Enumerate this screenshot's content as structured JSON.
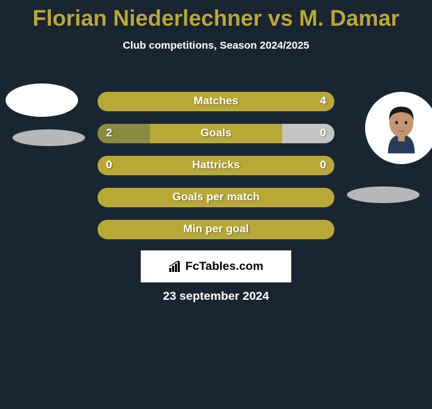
{
  "title": "Florian Niederlechner vs M. Damar",
  "subtitle": "Club competitions, Season 2024/2025",
  "date": "23 september 2024",
  "watermark": "FcTables.com",
  "colors": {
    "background": "#1a2532",
    "bar_base": "#b8a838",
    "accent_left": "#8a8a42",
    "accent_right": "#c4c4c4",
    "title_color": "#b8a838",
    "text_color": "#ffffff"
  },
  "bars": [
    {
      "label": "Matches",
      "value_left": "",
      "value_right": "4",
      "fill_left_pct": 0,
      "fill_right_pct": 0,
      "fill_color_left": "#8a8a42",
      "fill_color_right": "#c4c4c4"
    },
    {
      "label": "Goals",
      "value_left": "2",
      "value_right": "0",
      "fill_left_pct": 22,
      "fill_right_pct": 22,
      "fill_color_left": "#8a8a42",
      "fill_color_right": "#c4c4c4"
    },
    {
      "label": "Hattricks",
      "value_left": "0",
      "value_right": "0",
      "fill_left_pct": 0,
      "fill_right_pct": 0,
      "fill_color_left": "#8a8a42",
      "fill_color_right": "#c4c4c4"
    },
    {
      "label": "Goals per match",
      "value_left": "",
      "value_right": "",
      "fill_left_pct": 0,
      "fill_right_pct": 0,
      "fill_color_left": "#8a8a42",
      "fill_color_right": "#c4c4c4"
    },
    {
      "label": "Min per goal",
      "value_left": "",
      "value_right": "",
      "fill_left_pct": 0,
      "fill_right_pct": 0,
      "fill_color_left": "#8a8a42",
      "fill_color_right": "#c4c4c4"
    }
  ]
}
